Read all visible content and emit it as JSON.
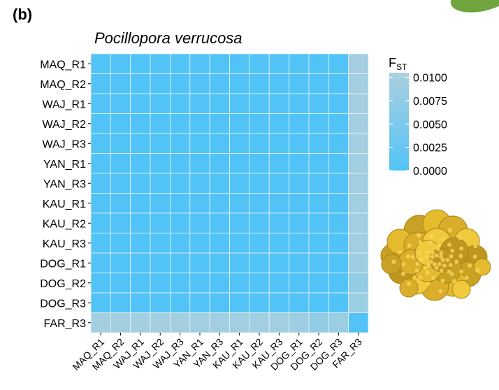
{
  "panel_label": "(b)",
  "colors": {
    "low": "#52c3f7",
    "high": "#abd0de",
    "grid": "#e6f4fb",
    "axis": "#000000"
  },
  "decoration": {
    "coral_icon": "coral-colony-icon",
    "corner_icon": "leaf-icon"
  },
  "chart_data": {
    "type": "heatmap",
    "title": "Pocillopora verrucosa",
    "rows": [
      "MAQ_R1",
      "MAQ_R2",
      "WAJ_R1",
      "WAJ_R2",
      "WAJ_R3",
      "YAN_R1",
      "YAN_R3",
      "KAU_R1",
      "KAU_R2",
      "KAU_R3",
      "DOG_R1",
      "DOG_R2",
      "DOG_R3",
      "FAR_R3"
    ],
    "columns": [
      "MAQ_R1",
      "MAQ_R2",
      "WAJ_R1",
      "WAJ_R2",
      "WAJ_R3",
      "YAN_R1",
      "YAN_R3",
      "KAU_R1",
      "KAU_R2",
      "KAU_R3",
      "DOG_R1",
      "DOG_R2",
      "DOG_R3",
      "FAR_R3"
    ],
    "values": [
      [
        0,
        0,
        0,
        0,
        0,
        0,
        0,
        0,
        0,
        0,
        0,
        0,
        0,
        0.0095
      ],
      [
        0,
        0,
        0,
        0,
        0,
        0,
        0,
        0,
        0,
        0,
        0,
        0,
        0,
        0.0095
      ],
      [
        0,
        0,
        0,
        0,
        0,
        0,
        0,
        0,
        0,
        0,
        0,
        0,
        0,
        0.0095
      ],
      [
        0,
        0,
        0,
        0,
        0,
        0,
        0,
        0,
        0,
        0,
        0,
        0,
        0,
        0.0095
      ],
      [
        0,
        0,
        0,
        0,
        0,
        0,
        0,
        0,
        0,
        0,
        0,
        0,
        0,
        0.0095
      ],
      [
        0,
        0,
        0,
        0,
        0,
        0,
        0,
        0,
        0,
        0,
        0,
        0,
        0,
        0.0093
      ],
      [
        0,
        0,
        0,
        0,
        0,
        0,
        0,
        0,
        0,
        0,
        0,
        0,
        0,
        0.0093
      ],
      [
        0,
        0,
        0,
        0,
        0,
        0,
        0,
        0,
        0,
        0,
        0,
        0,
        0,
        0.0093
      ],
      [
        0,
        0,
        0,
        0,
        0,
        0,
        0,
        0,
        0,
        0,
        0,
        0,
        0,
        0.0093
      ],
      [
        0,
        0,
        0,
        0,
        0,
        0,
        0,
        0,
        0,
        0,
        0,
        0,
        0,
        0.0093
      ],
      [
        0,
        0,
        0,
        0,
        0,
        0,
        0,
        0,
        0,
        0,
        0,
        0,
        0,
        0.009
      ],
      [
        0,
        0,
        0,
        0,
        0,
        0,
        0,
        0,
        0,
        0,
        0,
        0,
        0,
        0.0075
      ],
      [
        0,
        0,
        0,
        0,
        0,
        0,
        0,
        0,
        0,
        0,
        0,
        0,
        0,
        0.0085
      ],
      [
        0.0095,
        0.0095,
        0.0095,
        0.0095,
        0.0095,
        0.0093,
        0.0093,
        0.0093,
        0.0093,
        0.0093,
        0.009,
        0.0075,
        0.0085,
        0
      ]
    ],
    "legend": {
      "title_main": "F",
      "title_sub": "ST",
      "ticks": [
        0.01,
        0.0075,
        0.005,
        0.0025,
        0.0
      ],
      "tick_labels": [
        "0.0100",
        "0.0075",
        "0.0050",
        "0.0025",
        "0.0000"
      ],
      "range": [
        0,
        0.0105
      ],
      "placement": "right"
    },
    "grid": true
  }
}
